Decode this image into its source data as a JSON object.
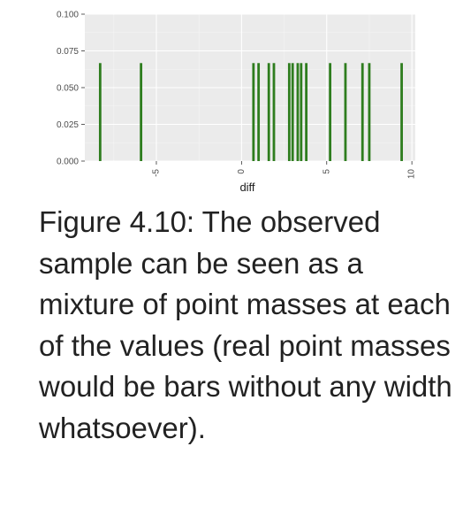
{
  "chart_data": {
    "type": "bar",
    "xlabel": "diff",
    "ylabel": "",
    "xlim": [
      -9.2,
      10.2
    ],
    "ylim": [
      0,
      0.1
    ],
    "x_ticks": [
      -5,
      0,
      5,
      10
    ],
    "y_ticks": [
      0.0,
      0.025,
      0.05,
      0.075,
      0.1
    ],
    "y_tick_labels": [
      "0.000",
      "0.025",
      "0.050",
      "0.075",
      "0.100"
    ],
    "bar_height": 0.0667,
    "x": [
      -8.3,
      -5.9,
      0.7,
      1.0,
      1.6,
      1.9,
      2.8,
      3.0,
      3.3,
      3.5,
      3.8,
      5.2,
      6.1,
      7.1,
      7.5,
      9.4
    ],
    "grid": true,
    "background": "#ebebeb",
    "bar_color": "#2e7d1e"
  },
  "caption": {
    "text": "Figure 4.10: The observed sample can be seen as a mixture of point masses at each of the values (real point masses would be bars without any width whatsoever)."
  }
}
